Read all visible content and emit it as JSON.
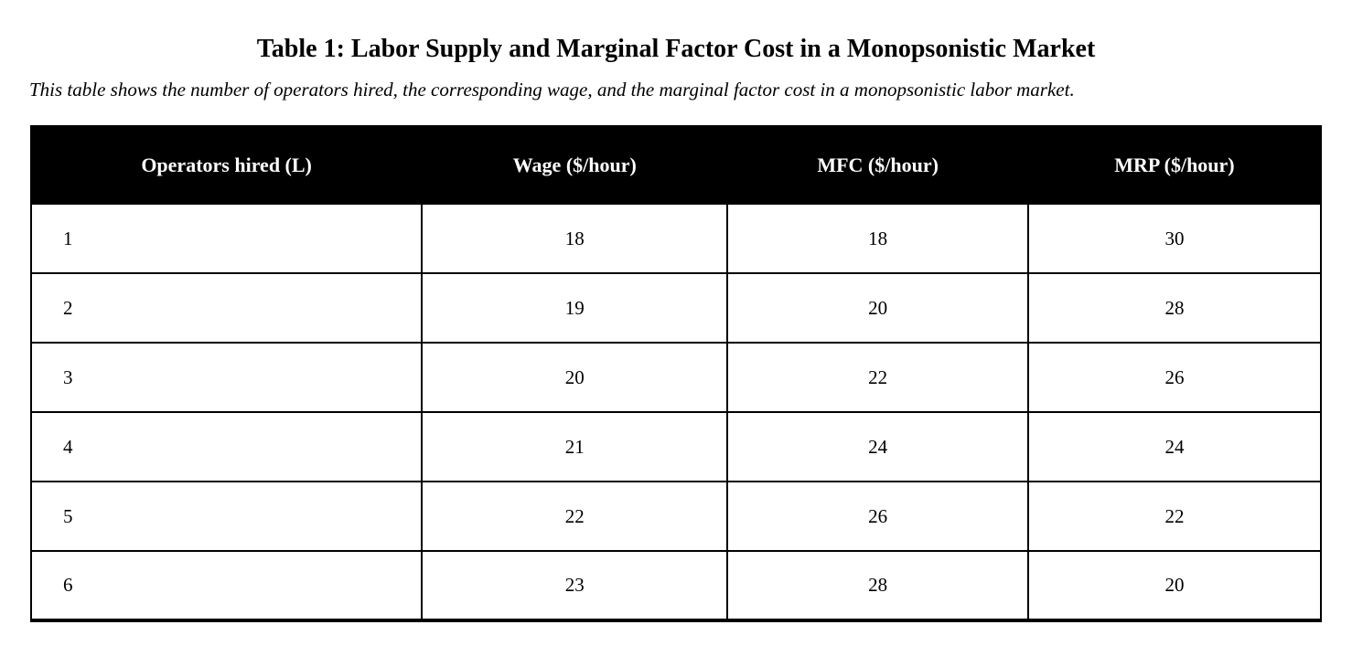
{
  "page": {
    "title": "Table 1: Labor Supply and Marginal Factor Cost in a Monopsonistic Market",
    "subtitle": "This table shows the number of operators hired, the corresponding wage, and the marginal factor cost in a monopsonistic labor market."
  },
  "colors": {
    "header_background": "#000000",
    "header_text": "#ffffff",
    "border": "#000000",
    "page_background": "#ffffff"
  },
  "table": {
    "columns": [
      "Operators hired (L)",
      "Wage ($/hour)",
      "MFC ($/hour)",
      "MRP ($/hour)"
    ],
    "rows": [
      [
        "1",
        "18",
        "18",
        "30"
      ],
      [
        "2",
        "19",
        "20",
        "28"
      ],
      [
        "3",
        "20",
        "22",
        "26"
      ],
      [
        "4",
        "21",
        "24",
        "24"
      ],
      [
        "5",
        "22",
        "26",
        "22"
      ],
      [
        "6",
        "23",
        "28",
        "20"
      ]
    ]
  }
}
